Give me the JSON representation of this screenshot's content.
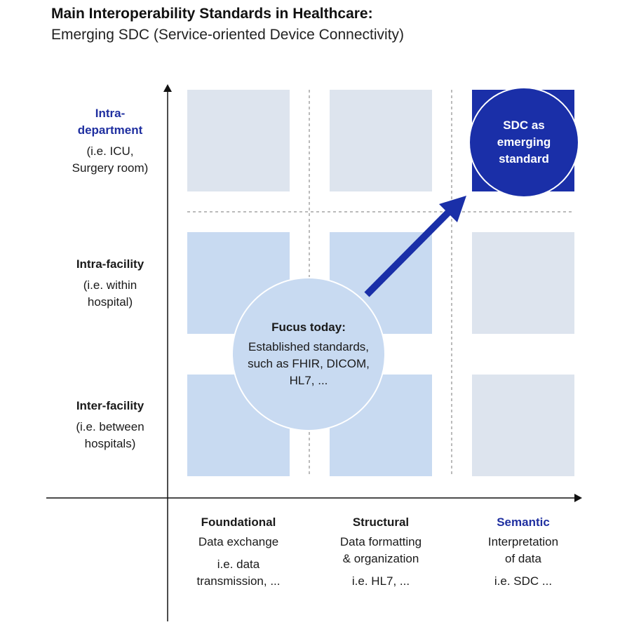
{
  "header": {
    "title": "Main Interoperability Standards in Healthcare:",
    "subtitle": "Emerging SDC (Service-oriented Device Connectivity)"
  },
  "rows": [
    {
      "heading": "Intra-\ndepartment",
      "sub": "(i.e. ICU,\nSurgery room)"
    },
    {
      "heading": "Intra-facility",
      "sub": "(i.e. within\nhospital)"
    },
    {
      "heading": "Inter-facility",
      "sub": "(i.e. between\nhospitals)"
    }
  ],
  "columns": [
    {
      "heading": "Foundational",
      "desc": "Data exchange",
      "example": "i.e. data\ntransmission, ..."
    },
    {
      "heading": "Structural",
      "desc": "Data formatting\n& organization",
      "example": "i.e. HL7, ..."
    },
    {
      "heading": "Semantic",
      "desc": "Interpretation\nof data",
      "example": "i.e. SDC ..."
    }
  ],
  "focus": {
    "heading": "Fucus today:",
    "body": "Established standards,\nsuch as FHIR, DICOM,\nHL7, ..."
  },
  "sdc": {
    "label": "SDC as\nemerging\nstandard"
  },
  "colors": {
    "cell_grey": "#dde4ee",
    "cell_light_blue": "#c8daf1",
    "cell_dark_blue": "#1a2fa8",
    "accent_text": "#1f2fa0",
    "arrow": "#1a2fa8"
  }
}
